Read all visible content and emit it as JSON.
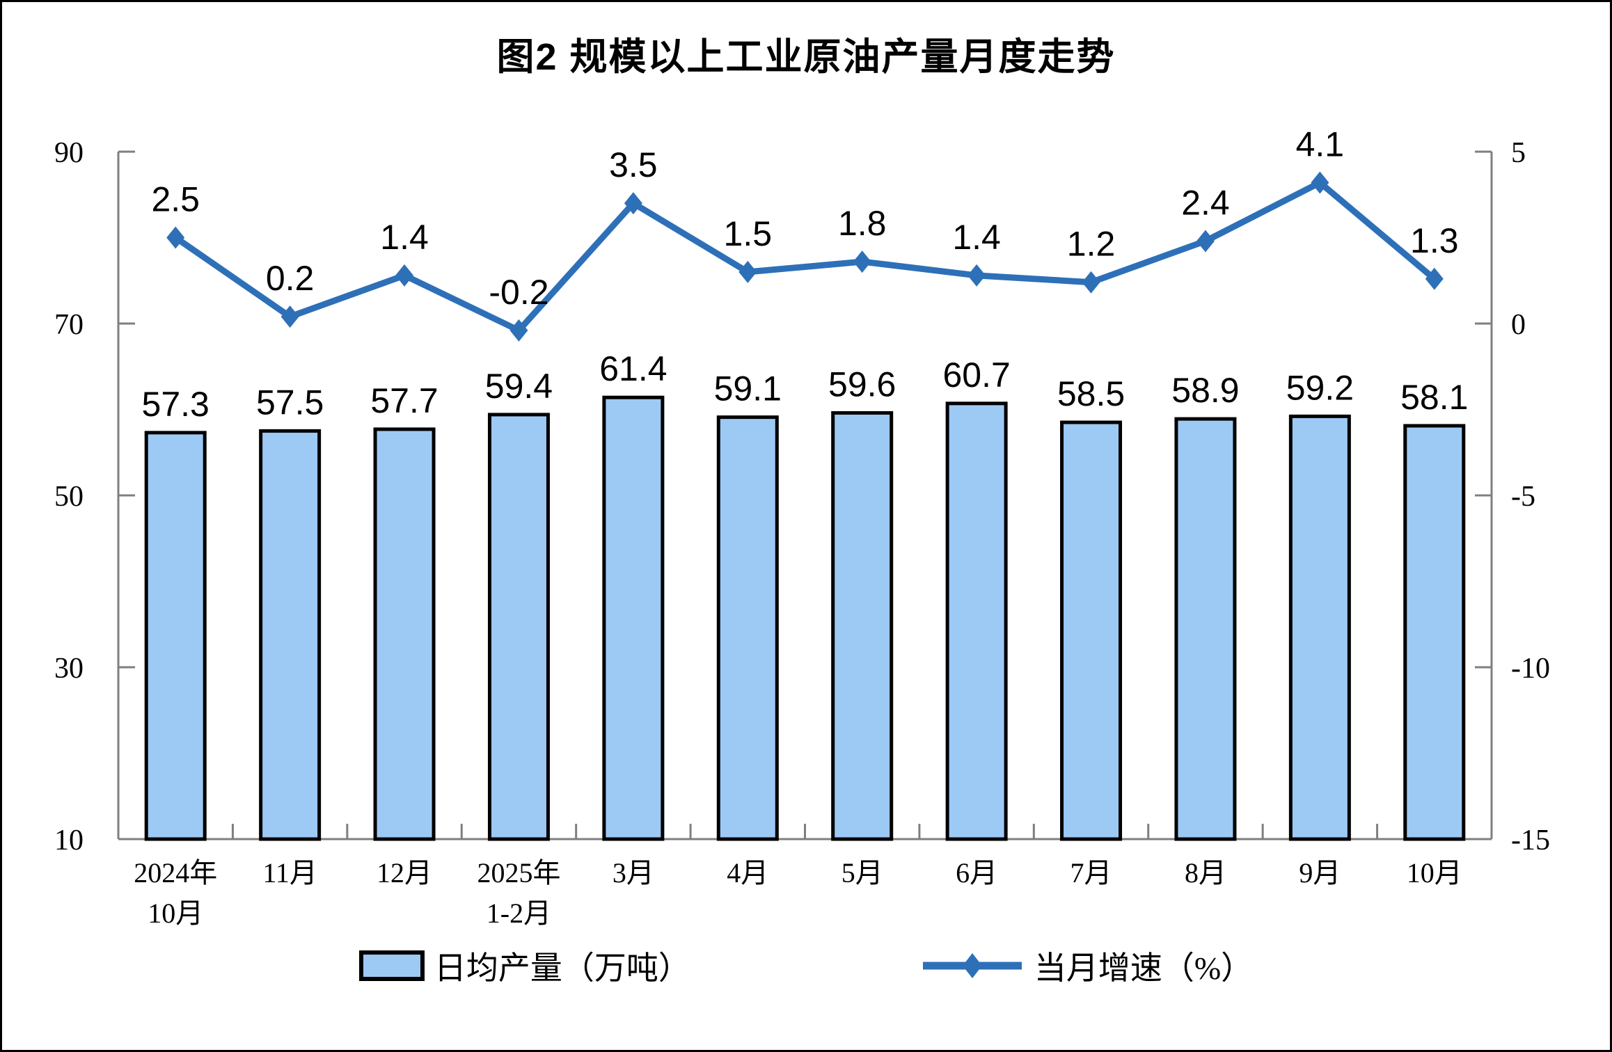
{
  "title": "图2 规模以上工业原油产量月度走势",
  "legend": {
    "bar_label": "日均产量（万吨）",
    "line_label": "当月增速（%）"
  },
  "colors": {
    "bar_fill": "#9DC9F5",
    "bar_stroke": "#000000",
    "line": "#2E70B8",
    "axis": "#7F7F7F",
    "text": "#000000",
    "background": "#FFFFFF"
  },
  "chart_data": {
    "type": "bar",
    "subtype": "bar+line dual axis",
    "title": "图2 规模以上工业原油产量月度走势",
    "categories": [
      "2024年10月",
      "11月",
      "12月",
      "2025年1-2月",
      "3月",
      "4月",
      "5月",
      "6月",
      "7月",
      "8月",
      "9月",
      "10月"
    ],
    "category_lines": [
      [
        "2024年",
        "10月"
      ],
      [
        "11月"
      ],
      [
        "12月"
      ],
      [
        "2025年",
        "1-2月"
      ],
      [
        "3月"
      ],
      [
        "4月"
      ],
      [
        "5月"
      ],
      [
        "6月"
      ],
      [
        "7月"
      ],
      [
        "8月"
      ],
      [
        "9月"
      ],
      [
        "10月"
      ]
    ],
    "series": [
      {
        "name": "日均产量（万吨）",
        "type": "bar",
        "axis": "left",
        "values": [
          57.3,
          57.5,
          57.7,
          59.4,
          61.4,
          59.1,
          59.6,
          60.7,
          58.5,
          58.9,
          59.2,
          58.1
        ]
      },
      {
        "name": "当月增速（%）",
        "type": "line",
        "axis": "right",
        "values": [
          2.5,
          0.2,
          1.4,
          -0.2,
          3.5,
          1.5,
          1.8,
          1.4,
          1.2,
          2.4,
          4.1,
          1.3
        ]
      }
    ],
    "left_axis": {
      "ticks": [
        90,
        70,
        50,
        30,
        10
      ],
      "min": 10,
      "max": 90
    },
    "right_axis": {
      "ticks": [
        5,
        0,
        -5,
        -10,
        -15
      ],
      "min": -15,
      "max": 5
    },
    "grid": false,
    "legend_position": "bottom",
    "data_labels": true
  }
}
